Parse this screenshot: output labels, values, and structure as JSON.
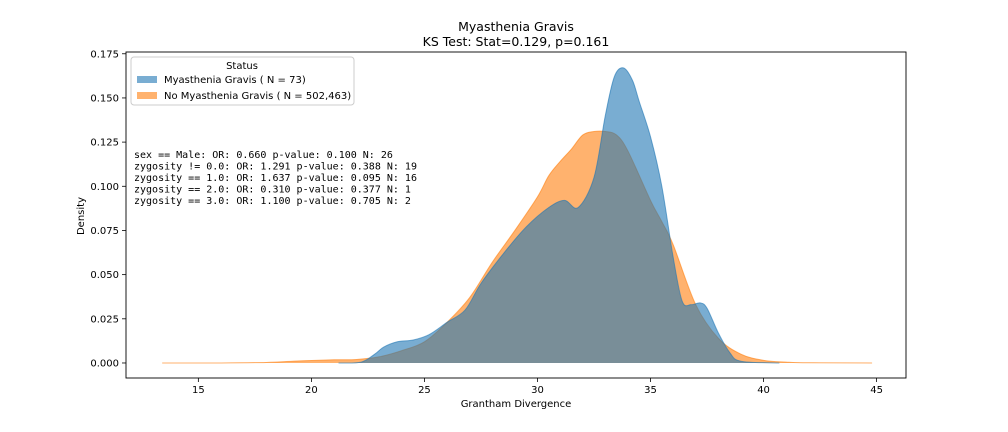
{
  "chart_data": {
    "type": "area",
    "title": "Myasthenia Gravis",
    "subtitle": "KS Test: Stat=0.129, p=0.161",
    "xlabel": "Grantham Divergence",
    "ylabel": "Density",
    "xlim": [
      11.8,
      46.3
    ],
    "ylim": [
      -0.0085,
      0.176
    ],
    "xticks": [
      "15",
      "20",
      "25",
      "30",
      "35",
      "40",
      "45"
    ],
    "yticks": [
      "0.000",
      "0.025",
      "0.050",
      "0.075",
      "0.100",
      "0.125",
      "0.150",
      "0.175"
    ],
    "legend": {
      "title": "Status",
      "placement": "top-left"
    },
    "series": [
      {
        "name": "No Myasthenia Gravis ( N = 502,463)",
        "color": "#ff7f0e",
        "x": [
          13.4,
          16,
          18,
          19.5,
          21,
          22,
          23,
          24,
          25,
          26,
          27,
          28,
          29,
          30,
          30.5,
          31,
          31.5,
          32,
          32.5,
          33,
          33.5,
          34,
          35,
          35.5,
          36,
          37,
          38,
          39,
          40,
          41,
          42,
          44.8
        ],
        "y": [
          0.0,
          0.0,
          0.0003,
          0.0012,
          0.0018,
          0.002,
          0.0035,
          0.007,
          0.012,
          0.023,
          0.037,
          0.057,
          0.075,
          0.094,
          0.106,
          0.114,
          0.121,
          0.129,
          0.131,
          0.131,
          0.129,
          0.12,
          0.092,
          0.08,
          0.067,
          0.033,
          0.014,
          0.005,
          0.0015,
          0.0005,
          0.0001,
          0.0
        ]
      },
      {
        "name": "Myasthenia Gravis ( N = 73)",
        "color": "#1f77b4",
        "x": [
          21.2,
          22.2,
          22.8,
          23.2,
          23.8,
          24.5,
          25.2,
          26,
          26.8,
          27.5,
          28.5,
          29.5,
          30.5,
          31.2,
          31.8,
          32.5,
          33,
          33.4,
          33.8,
          34.2,
          34.5,
          35,
          35.5,
          36,
          36.4,
          36.8,
          37.2,
          37.5,
          38,
          38.5,
          39,
          40.7
        ],
        "y": [
          0.0,
          0.0005,
          0.005,
          0.009,
          0.012,
          0.013,
          0.016,
          0.023,
          0.03,
          0.045,
          0.062,
          0.077,
          0.088,
          0.092,
          0.088,
          0.105,
          0.14,
          0.162,
          0.167,
          0.16,
          0.148,
          0.128,
          0.1,
          0.06,
          0.035,
          0.033,
          0.034,
          0.031,
          0.017,
          0.006,
          0.001,
          0.0
        ]
      }
    ],
    "annotations": [
      "sex == Male: OR: 0.660 p-value: 0.100 N: 26",
      "zygosity != 0.0: OR: 1.291 p-value: 0.388 N: 19",
      "zygosity == 1.0: OR: 1.637 p-value: 0.095 N: 16",
      "zygosity == 2.0: OR: 0.310 p-value: 0.377 N: 1",
      "zygosity == 3.0: OR: 1.100 p-value: 0.705 N: 2"
    ]
  }
}
